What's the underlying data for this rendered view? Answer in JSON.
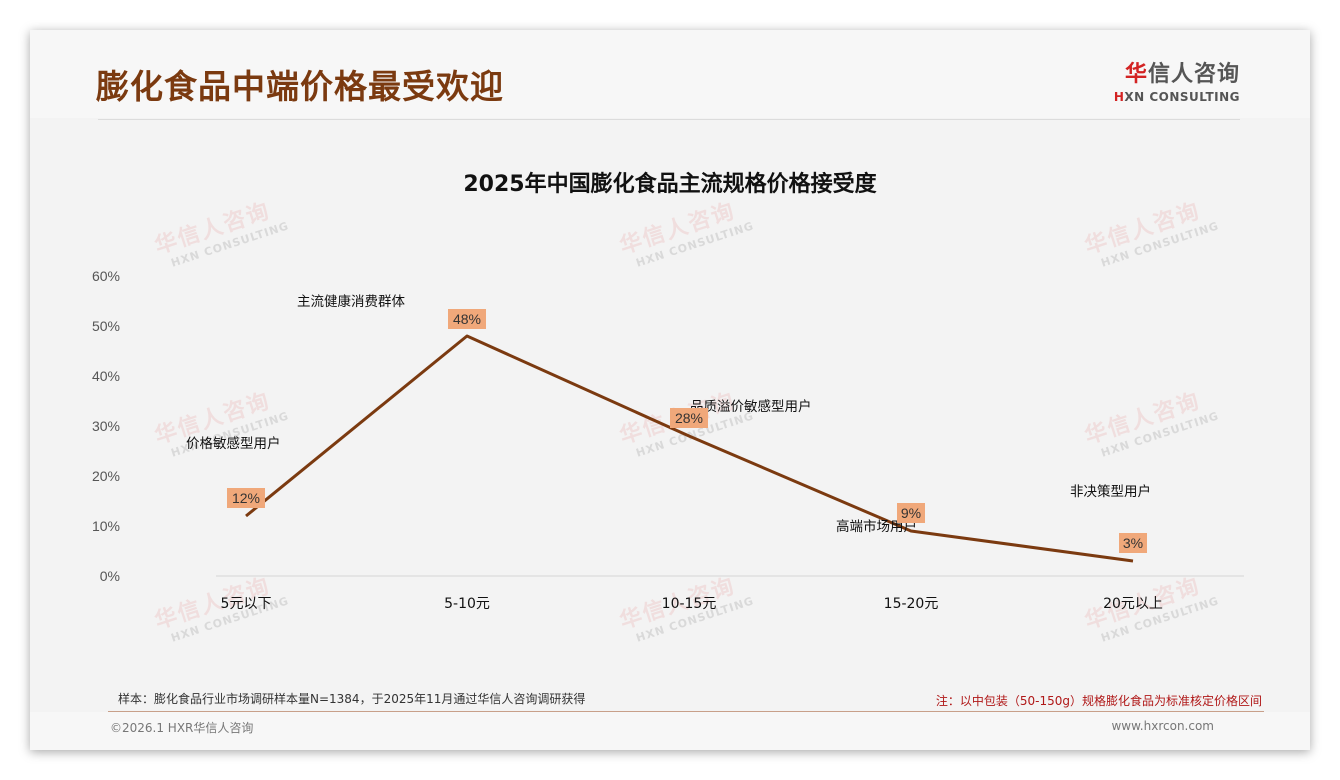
{
  "header": {
    "title": "膨化食品中端价格最受欢迎",
    "logo_cn_accent": "华",
    "logo_cn_rest": "信人咨询",
    "logo_en_accent": "H",
    "logo_en_rest": "XN CONSULTING"
  },
  "watermark": {
    "cn": "华信人咨询",
    "en": "HXN CONSULTING"
  },
  "colors": {
    "title": "#7b3a10",
    "line": "#7b3a10",
    "label_bg": "#f0a87a",
    "note": "#b01818",
    "logo_accent": "#d32323"
  },
  "chart_data": {
    "type": "line",
    "title": "2025年中国膨化食品主流规格价格接受度",
    "xlabel": "",
    "ylabel": "",
    "categories": [
      "5元以下",
      "5-10元",
      "10-15元",
      "15-20元",
      "20元以上"
    ],
    "series": [
      {
        "name": "价格接受度",
        "values": [
          12,
          48,
          28,
          9,
          3
        ]
      }
    ],
    "data_labels": [
      "12%",
      "48%",
      "28%",
      "9%",
      "3%"
    ],
    "annotations": [
      "价格敏感型用户",
      "主流健康消费群体",
      "品质溢价敏感型用户",
      "高端市场用户",
      "非决策型用户"
    ],
    "yticks": [
      "0%",
      "10%",
      "20%",
      "30%",
      "40%",
      "50%",
      "60%"
    ],
    "ylim": [
      0,
      60
    ],
    "grid": false,
    "legend": "none"
  },
  "footer": {
    "sample_note": "样本：膨化食品行业市场调研样本量N=1384，于2025年11月通过华信人咨询调研获得",
    "price_note": "注：以中包装（50-150g）规格膨化食品为标准核定价格区间",
    "copyright": "©2026.1 HXR华信人咨询",
    "website": "www.hxrcon.com"
  }
}
